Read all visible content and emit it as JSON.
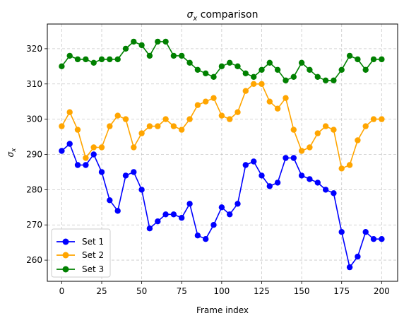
{
  "chart_data": {
    "type": "line",
    "title_main": "σ",
    "title_sub": "x",
    "title_rest": " comparison",
    "xlabel": "Frame index",
    "ylabel_main": "σ",
    "ylabel_sub": "x",
    "xlim": [
      -9,
      210
    ],
    "ylim": [
      254,
      327
    ],
    "xticks": [
      0,
      25,
      50,
      75,
      100,
      125,
      150,
      175,
      200
    ],
    "yticks": [
      260,
      270,
      280,
      290,
      300,
      310,
      320
    ],
    "grid": true,
    "legend_position": "lower-left",
    "series": [
      {
        "name": "Set 1",
        "color": "#0000ff",
        "x": [
          0,
          5,
          10,
          15,
          20,
          25,
          30,
          35,
          40,
          45,
          50,
          55,
          60,
          65,
          70,
          75,
          80,
          85,
          90,
          95,
          100,
          105,
          110,
          115,
          120,
          125,
          130,
          135,
          140,
          145,
          150,
          155,
          160,
          165,
          170,
          175,
          180,
          185,
          190,
          195,
          200
        ],
        "values": [
          291,
          293,
          287,
          287,
          290,
          285,
          277,
          274,
          284,
          285,
          280,
          269,
          271,
          273,
          273,
          272,
          276,
          267,
          266,
          270,
          275,
          273,
          276,
          287,
          288,
          284,
          281,
          282,
          289,
          289,
          284,
          283,
          282,
          280,
          279,
          268,
          258,
          261,
          268,
          266,
          266
        ]
      },
      {
        "name": "Set 2",
        "color": "#ffa500",
        "x": [
          0,
          5,
          10,
          15,
          20,
          25,
          30,
          35,
          40,
          45,
          50,
          55,
          60,
          65,
          70,
          75,
          80,
          85,
          90,
          95,
          100,
          105,
          110,
          115,
          120,
          125,
          130,
          135,
          140,
          145,
          150,
          155,
          160,
          165,
          170,
          175,
          180,
          185,
          190,
          195,
          200
        ],
        "values": [
          298,
          302,
          297,
          289,
          292,
          292,
          298,
          301,
          300,
          292,
          296,
          298,
          298,
          300,
          298,
          297,
          300,
          304,
          305,
          306,
          301,
          300,
          302,
          308,
          310,
          310,
          305,
          303,
          306,
          297,
          291,
          292,
          296,
          298,
          297,
          286,
          287,
          294,
          298,
          300,
          300
        ]
      },
      {
        "name": "Set 3",
        "color": "#008000",
        "x": [
          0,
          5,
          10,
          15,
          20,
          25,
          30,
          35,
          40,
          45,
          50,
          55,
          60,
          65,
          70,
          75,
          80,
          85,
          90,
          95,
          100,
          105,
          110,
          115,
          120,
          125,
          130,
          135,
          140,
          145,
          150,
          155,
          160,
          165,
          170,
          175,
          180,
          185,
          190,
          195,
          200
        ],
        "values": [
          315,
          318,
          317,
          317,
          316,
          317,
          317,
          317,
          320,
          322,
          321,
          318,
          322,
          322,
          318,
          318,
          316,
          314,
          313,
          312,
          315,
          316,
          315,
          313,
          312,
          314,
          316,
          314,
          311,
          312,
          316,
          314,
          312,
          311,
          311,
          314,
          318,
          317,
          314,
          317,
          317
        ]
      }
    ]
  }
}
